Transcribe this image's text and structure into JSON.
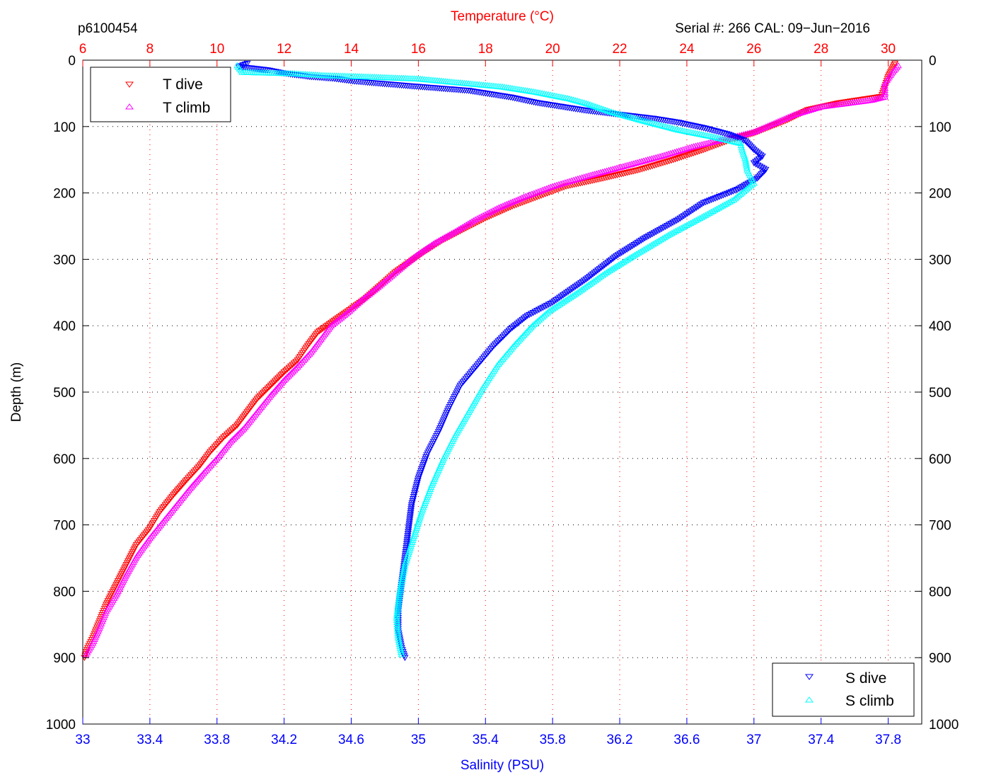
{
  "chart_data": {
    "type": "scatter",
    "top_left_label": "p6100454",
    "top_right_label": "Serial #: 266  CAL: 09−Jun−2016",
    "top_axis": {
      "label": "Temperature (°C)",
      "range": [
        6,
        31
      ],
      "ticks": [
        "6",
        "8",
        "10",
        "12",
        "14",
        "16",
        "18",
        "20",
        "22",
        "24",
        "26",
        "28",
        "30"
      ],
      "color": "#ff0000"
    },
    "bottom_axis": {
      "label": "Salinity (PSU)",
      "range": [
        33,
        38
      ],
      "ticks": [
        "33",
        "33.4",
        "33.8",
        "34.2",
        "34.6",
        "35",
        "35.4",
        "35.8",
        "36.2",
        "36.6",
        "37",
        "37.4",
        "37.8"
      ],
      "color": "#0000ff"
    },
    "y_axis": {
      "label": "Depth (m)",
      "range": [
        0,
        1000
      ],
      "reversed": true,
      "ticks": [
        "0",
        "100",
        "200",
        "300",
        "400",
        "500",
        "600",
        "700",
        "800",
        "900",
        "1000"
      ]
    },
    "grid": true,
    "legends": [
      {
        "position": "top-left",
        "entries": [
          {
            "name": "T dive",
            "marker": "triangle-down",
            "color": "#ff0000"
          },
          {
            "name": "T climb",
            "marker": "triangle-up",
            "color": "#ff00ff"
          }
        ]
      },
      {
        "position": "bottom-right",
        "entries": [
          {
            "name": "S dive",
            "marker": "triangle-down",
            "color": "#0000ff"
          },
          {
            "name": "S climb",
            "marker": "triangle-up",
            "color": "#00ffff"
          }
        ]
      }
    ],
    "series": [
      {
        "name": "T dive",
        "axis": "temperature",
        "marker": "triangle-down",
        "color": "#ff0000",
        "points": [
          [
            30.2,
            5
          ],
          [
            30.1,
            15
          ],
          [
            30.0,
            25
          ],
          [
            29.9,
            40
          ],
          [
            29.8,
            55
          ],
          [
            28.5,
            65
          ],
          [
            27.6,
            75
          ],
          [
            27.0,
            90
          ],
          [
            26.5,
            100
          ],
          [
            26.0,
            110
          ],
          [
            25.3,
            120
          ],
          [
            24.5,
            135
          ],
          [
            23.6,
            150
          ],
          [
            22.6,
            165
          ],
          [
            21.5,
            178
          ],
          [
            20.4,
            190
          ],
          [
            19.6,
            205
          ],
          [
            18.8,
            220
          ],
          [
            18.0,
            238
          ],
          [
            17.3,
            256
          ],
          [
            16.7,
            272
          ],
          [
            16.2,
            288
          ],
          [
            15.8,
            302
          ],
          [
            15.3,
            320
          ],
          [
            14.9,
            338
          ],
          [
            14.4,
            360
          ],
          [
            13.9,
            378
          ],
          [
            13.5,
            392
          ],
          [
            13.0,
            410
          ],
          [
            12.7,
            430
          ],
          [
            12.4,
            452
          ],
          [
            12.0,
            470
          ],
          [
            11.6,
            490
          ],
          [
            11.2,
            510
          ],
          [
            10.9,
            530
          ],
          [
            10.6,
            550
          ],
          [
            10.2,
            568
          ],
          [
            9.8,
            590
          ],
          [
            9.5,
            610
          ],
          [
            9.1,
            632
          ],
          [
            8.7,
            655
          ],
          [
            8.3,
            680
          ],
          [
            8.0,
            705
          ],
          [
            7.6,
            730
          ],
          [
            7.3,
            760
          ],
          [
            7.0,
            790
          ],
          [
            6.7,
            820
          ],
          [
            6.5,
            845
          ],
          [
            6.3,
            870
          ],
          [
            6.15,
            885
          ],
          [
            6.05,
            900
          ]
        ]
      },
      {
        "name": "T climb",
        "axis": "temperature",
        "marker": "triangle-up",
        "color": "#ff00ff",
        "points": [
          [
            30.3,
            8
          ],
          [
            30.1,
            20
          ],
          [
            29.9,
            35
          ],
          [
            29.9,
            55
          ],
          [
            29.5,
            60
          ],
          [
            28.0,
            70
          ],
          [
            27.2,
            82
          ],
          [
            26.6,
            95
          ],
          [
            26.0,
            108
          ],
          [
            25.2,
            118
          ],
          [
            24.2,
            130
          ],
          [
            23.2,
            145
          ],
          [
            22.1,
            160
          ],
          [
            21.0,
            175
          ],
          [
            20.0,
            190
          ],
          [
            19.2,
            205
          ],
          [
            18.4,
            222
          ],
          [
            17.7,
            240
          ],
          [
            17.1,
            258
          ],
          [
            16.5,
            275
          ],
          [
            16.0,
            292
          ],
          [
            15.6,
            308
          ],
          [
            15.2,
            325
          ],
          [
            14.8,
            342
          ],
          [
            14.3,
            362
          ],
          [
            13.9,
            380
          ],
          [
            13.4,
            400
          ],
          [
            13.1,
            420
          ],
          [
            12.8,
            440
          ],
          [
            12.4,
            462
          ],
          [
            12.0,
            482
          ],
          [
            11.6,
            505
          ],
          [
            11.2,
            530
          ],
          [
            10.8,
            555
          ],
          [
            10.4,
            575
          ],
          [
            10.0,
            600
          ],
          [
            9.6,
            622
          ],
          [
            9.2,
            645
          ],
          [
            8.8,
            670
          ],
          [
            8.4,
            695
          ],
          [
            8.0,
            720
          ],
          [
            7.6,
            748
          ],
          [
            7.3,
            775
          ],
          [
            7.0,
            805
          ],
          [
            6.7,
            830
          ],
          [
            6.5,
            855
          ],
          [
            6.3,
            878
          ],
          [
            6.1,
            895
          ]
        ]
      },
      {
        "name": "S dive",
        "axis": "salinity",
        "marker": "triangle-down",
        "color": "#0000ff",
        "points": [
          [
            33.98,
            5
          ],
          [
            33.93,
            10
          ],
          [
            34.1,
            15
          ],
          [
            34.2,
            20
          ],
          [
            34.35,
            25
          ],
          [
            34.5,
            28
          ],
          [
            34.62,
            32
          ],
          [
            34.9,
            38
          ],
          [
            35.1,
            42
          ],
          [
            35.3,
            46
          ],
          [
            35.45,
            52
          ],
          [
            35.55,
            56
          ],
          [
            35.7,
            64
          ],
          [
            35.85,
            70
          ],
          [
            36.0,
            76
          ],
          [
            36.2,
            82
          ],
          [
            36.4,
            88
          ],
          [
            36.55,
            94
          ],
          [
            36.7,
            102
          ],
          [
            36.85,
            112
          ],
          [
            36.95,
            122
          ],
          [
            37.0,
            135
          ],
          [
            37.05,
            145
          ],
          [
            37.0,
            155
          ],
          [
            37.07,
            165
          ],
          [
            37.02,
            178
          ],
          [
            36.9,
            195
          ],
          [
            36.7,
            215
          ],
          [
            36.55,
            240
          ],
          [
            36.35,
            268
          ],
          [
            36.18,
            295
          ],
          [
            36.0,
            330
          ],
          [
            35.8,
            365
          ],
          [
            35.65,
            385
          ],
          [
            35.55,
            405
          ],
          [
            35.45,
            430
          ],
          [
            35.35,
            460
          ],
          [
            35.25,
            490
          ],
          [
            35.18,
            525
          ],
          [
            35.12,
            560
          ],
          [
            35.05,
            595
          ],
          [
            35.0,
            630
          ],
          [
            34.96,
            670
          ],
          [
            34.94,
            710
          ],
          [
            34.92,
            750
          ],
          [
            34.9,
            790
          ],
          [
            34.88,
            830
          ],
          [
            34.88,
            860
          ],
          [
            34.9,
            885
          ],
          [
            34.92,
            900
          ]
        ]
      },
      {
        "name": "S climb",
        "axis": "salinity",
        "marker": "triangle-up",
        "color": "#00ffff",
        "points": [
          [
            33.92,
            8
          ],
          [
            33.95,
            18
          ],
          [
            34.25,
            20
          ],
          [
            34.45,
            23
          ],
          [
            34.7,
            25
          ],
          [
            35.0,
            28
          ],
          [
            35.25,
            34
          ],
          [
            35.5,
            40
          ],
          [
            35.7,
            48
          ],
          [
            35.9,
            58
          ],
          [
            36.0,
            65
          ],
          [
            36.15,
            78
          ],
          [
            36.35,
            92
          ],
          [
            36.55,
            105
          ],
          [
            36.75,
            115
          ],
          [
            36.92,
            125
          ],
          [
            36.93,
            135
          ],
          [
            36.95,
            150
          ],
          [
            36.96,
            165
          ],
          [
            37.0,
            185
          ],
          [
            36.88,
            210
          ],
          [
            36.7,
            235
          ],
          [
            36.5,
            262
          ],
          [
            36.3,
            292
          ],
          [
            36.12,
            320
          ],
          [
            35.95,
            350
          ],
          [
            35.78,
            378
          ],
          [
            35.68,
            400
          ],
          [
            35.57,
            430
          ],
          [
            35.47,
            460
          ],
          [
            35.38,
            495
          ],
          [
            35.3,
            530
          ],
          [
            35.22,
            565
          ],
          [
            35.15,
            600
          ],
          [
            35.08,
            640
          ],
          [
            35.02,
            680
          ],
          [
            34.97,
            720
          ],
          [
            34.92,
            760
          ],
          [
            34.89,
            800
          ],
          [
            34.87,
            840
          ],
          [
            34.88,
            870
          ],
          [
            34.9,
            895
          ]
        ]
      }
    ]
  }
}
